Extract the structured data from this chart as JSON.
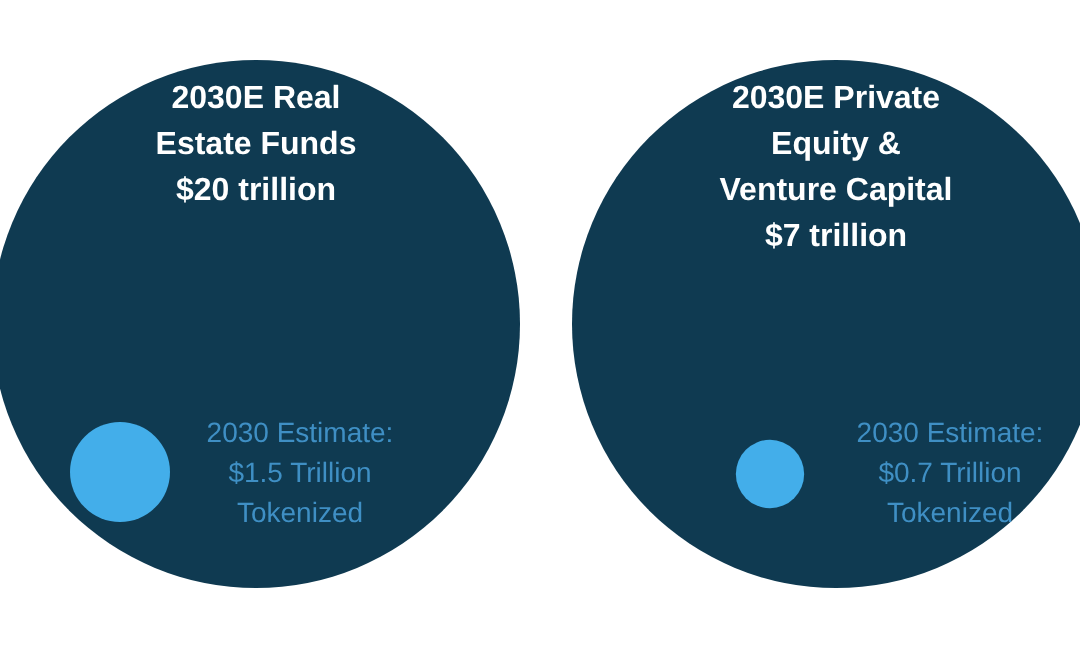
{
  "chart_data": {
    "type": "other",
    "categories": [
      "2030E Real Estate Funds",
      "2030E Private Equity & Venture Capital"
    ],
    "series": [
      {
        "color": "#0f3a51",
        "values": [
          20,
          7
        ],
        "value_labels": [
          "$20 trillion",
          "$7 trillion"
        ]
      },
      {
        "color": "#43aeea",
        "values": [
          1.5,
          0.7
        ],
        "value_labels": [
          "2030 Estimate: $1.5 Trillion Tokenized",
          "2030 Estimate: $0.7 Trillion Tokenized"
        ]
      }
    ]
  }
}
